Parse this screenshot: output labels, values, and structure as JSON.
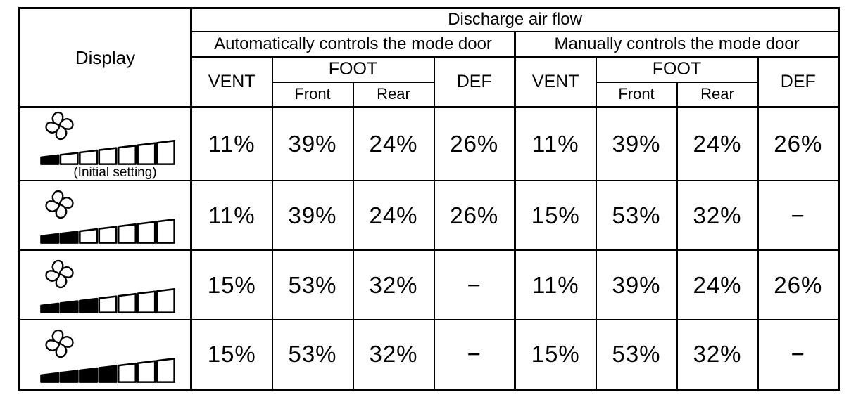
{
  "colors": {
    "background": "#ffffff",
    "border": "#000000",
    "text": "#000000",
    "bar_fill": "#000000"
  },
  "table": {
    "corner_header": "Display",
    "title": "Discharge air flow",
    "groups": [
      {
        "label": "Automatically controls the mode door"
      },
      {
        "label": "Manually controls the mode door"
      }
    ],
    "columns": {
      "vent": "VENT",
      "foot": "FOOT",
      "foot_front": "Front",
      "foot_rear": "Rear",
      "def": "DEF"
    },
    "rows": [
      {
        "display": {
          "icon": "fan-icon",
          "filled_segments": 1,
          "total_segments": 7,
          "caption": "(Initial setting)"
        },
        "auto": {
          "vent": "11%",
          "foot_front": "39%",
          "foot_rear": "24%",
          "def": "26%"
        },
        "manual": {
          "vent": "11%",
          "foot_front": "39%",
          "foot_rear": "24%",
          "def": "26%"
        }
      },
      {
        "display": {
          "icon": "fan-icon",
          "filled_segments": 2,
          "total_segments": 7,
          "caption": ""
        },
        "auto": {
          "vent": "11%",
          "foot_front": "39%",
          "foot_rear": "24%",
          "def": "26%"
        },
        "manual": {
          "vent": "15%",
          "foot_front": "53%",
          "foot_rear": "32%",
          "def": "−"
        }
      },
      {
        "display": {
          "icon": "fan-icon",
          "filled_segments": 3,
          "total_segments": 7,
          "caption": ""
        },
        "auto": {
          "vent": "15%",
          "foot_front": "53%",
          "foot_rear": "32%",
          "def": "−"
        },
        "manual": {
          "vent": "11%",
          "foot_front": "39%",
          "foot_rear": "24%",
          "def": "26%"
        }
      },
      {
        "display": {
          "icon": "fan-icon",
          "filled_segments": 4,
          "total_segments": 7,
          "caption": ""
        },
        "auto": {
          "vent": "15%",
          "foot_front": "53%",
          "foot_rear": "32%",
          "def": "−"
        },
        "manual": {
          "vent": "15%",
          "foot_front": "53%",
          "foot_rear": "32%",
          "def": "−"
        }
      }
    ]
  }
}
